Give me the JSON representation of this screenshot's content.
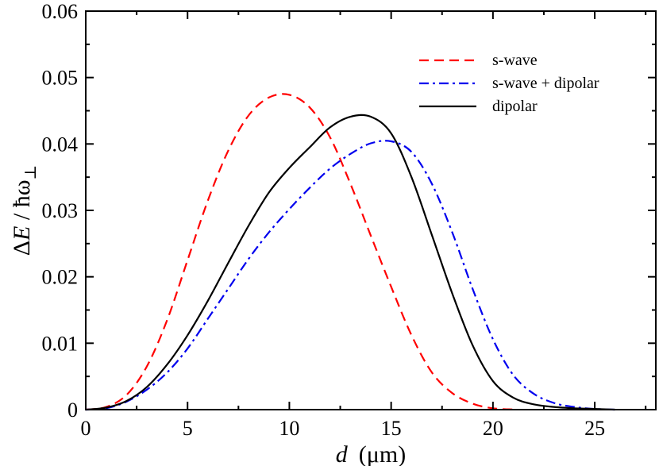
{
  "chart_data": {
    "type": "line",
    "title": "",
    "xlabel": {
      "italic": "d",
      "unit": "(μm)"
    },
    "ylabel": {
      "delta": "Δ",
      "italic": "E",
      "rest": " / ħω",
      "sub": "⊥"
    },
    "xlim": [
      0,
      28
    ],
    "ylim": [
      0,
      0.06
    ],
    "x_ticks": [
      0,
      5,
      10,
      15,
      20,
      25
    ],
    "x_tick_labels": [
      "0",
      "5",
      "10",
      "15",
      "20",
      "25"
    ],
    "y_ticks": [
      0,
      0.01,
      0.02,
      0.03,
      0.04,
      0.05,
      0.06
    ],
    "y_tick_labels": [
      "0",
      "0.01",
      "0.02",
      "0.03",
      "0.04",
      "0.05",
      "0.06"
    ],
    "grid": false,
    "legend_position": "top-right",
    "series": [
      {
        "name": "s-wave",
        "color": "#ff0000",
        "style": "dashed",
        "points": [
          [
            0,
            0
          ],
          [
            1,
            0.0004
          ],
          [
            2,
            0.0022
          ],
          [
            3,
            0.0065
          ],
          [
            4,
            0.0135
          ],
          [
            5,
            0.0225
          ],
          [
            6,
            0.0315
          ],
          [
            7,
            0.039
          ],
          [
            8,
            0.0443
          ],
          [
            9,
            0.047
          ],
          [
            10,
            0.0474
          ],
          [
            11,
            0.0455
          ],
          [
            12,
            0.041
          ],
          [
            13,
            0.034
          ],
          [
            14,
            0.0262
          ],
          [
            15,
            0.0185
          ],
          [
            16,
            0.0112
          ],
          [
            17,
            0.0056
          ],
          [
            18,
            0.0025
          ],
          [
            19,
            0.0009
          ],
          [
            20,
            0.0002
          ],
          [
            21,
            2e-05
          ]
        ]
      },
      {
        "name": "s-wave + dipolar",
        "color": "#0000ee",
        "style": "dashdot",
        "points": [
          [
            0,
            0
          ],
          [
            1,
            0.0002
          ],
          [
            2,
            0.0012
          ],
          [
            3,
            0.003
          ],
          [
            4,
            0.0056
          ],
          [
            5,
            0.0092
          ],
          [
            6,
            0.0137
          ],
          [
            7,
            0.0182
          ],
          [
            8,
            0.0227
          ],
          [
            9,
            0.0267
          ],
          [
            10,
            0.0302
          ],
          [
            11,
            0.0334
          ],
          [
            12,
            0.0363
          ],
          [
            13,
            0.0385
          ],
          [
            14,
            0.0401
          ],
          [
            15,
            0.0404
          ],
          [
            16,
            0.0388
          ],
          [
            17,
            0.034
          ],
          [
            18,
            0.0267
          ],
          [
            19,
            0.0182
          ],
          [
            20,
            0.0106
          ],
          [
            21,
            0.0052
          ],
          [
            22,
            0.0024
          ],
          [
            23,
            0.001
          ],
          [
            24,
            0.0004
          ],
          [
            25,
            0.0001
          ],
          [
            26,
            0.0
          ]
        ]
      },
      {
        "name": "dipolar",
        "color": "#000000",
        "style": "solid",
        "points": [
          [
            0,
            0
          ],
          [
            1,
            0.0003
          ],
          [
            2,
            0.0013
          ],
          [
            3,
            0.0034
          ],
          [
            4,
            0.0068
          ],
          [
            5,
            0.0112
          ],
          [
            6,
            0.0164
          ],
          [
            7,
            0.0221
          ],
          [
            8,
            0.0277
          ],
          [
            9,
            0.0327
          ],
          [
            10,
            0.0364
          ],
          [
            11,
            0.0395
          ],
          [
            12,
            0.0425
          ],
          [
            13,
            0.0441
          ],
          [
            14,
            0.0441
          ],
          [
            15,
            0.0416
          ],
          [
            16,
            0.035
          ],
          [
            17,
            0.0263
          ],
          [
            18,
            0.0175
          ],
          [
            19,
            0.0097
          ],
          [
            20,
            0.0043
          ],
          [
            21,
            0.0018
          ],
          [
            22,
            0.0008
          ],
          [
            23,
            0.0004
          ],
          [
            24,
            0.0002
          ],
          [
            25,
            0.0001
          ],
          [
            26,
            0.0
          ]
        ]
      }
    ]
  }
}
